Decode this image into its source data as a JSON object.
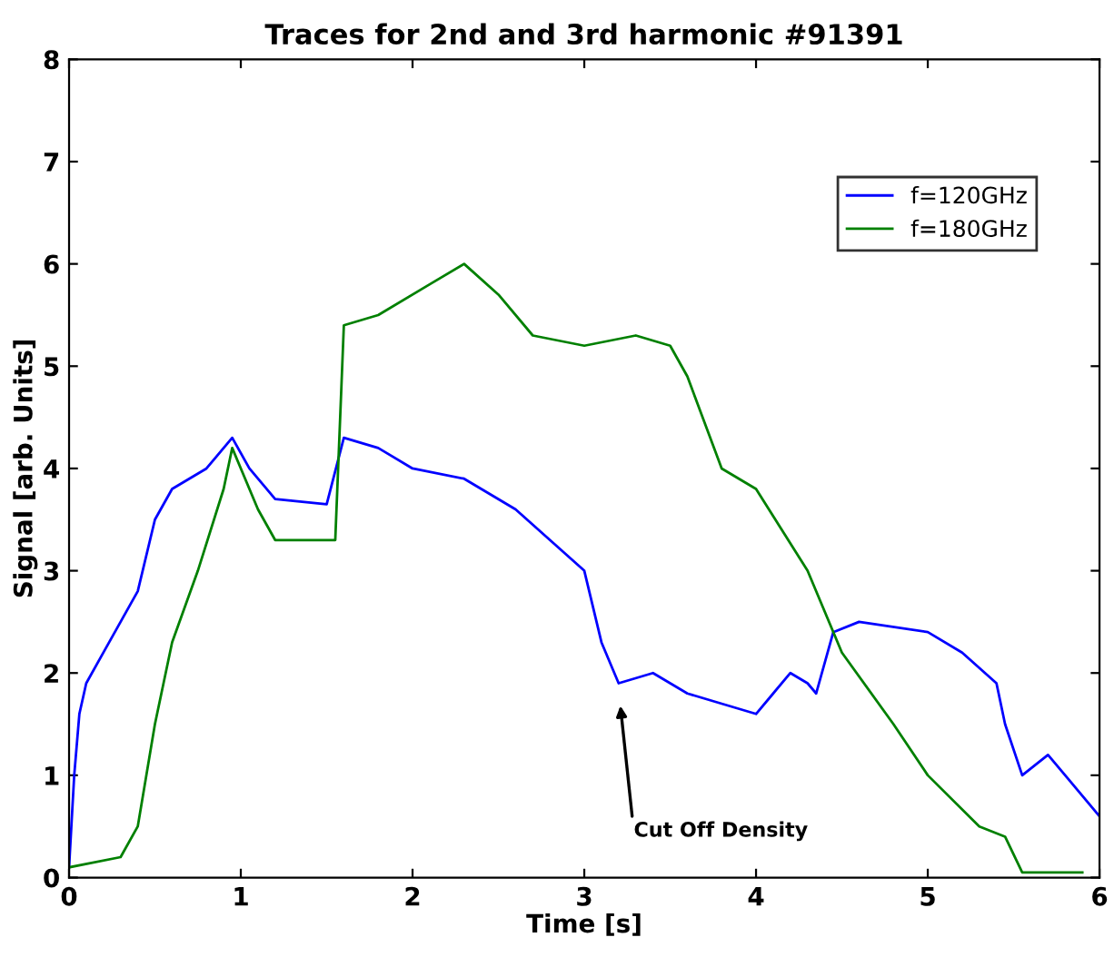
{
  "chart_data": {
    "type": "line",
    "title": "Traces for 2nd and 3rd harmonic #91391",
    "xlabel": "Time [s]",
    "ylabel": "Signal [arb. Units]",
    "xlim": [
      0,
      6
    ],
    "xticks": [
      0,
      1,
      2,
      3,
      4,
      5,
      6
    ],
    "ylim": [
      0,
      8
    ],
    "yticks": [
      0,
      1,
      2,
      3,
      4,
      5,
      6,
      7,
      8
    ],
    "grid": false,
    "legend": "top right",
    "marker": "none",
    "line_style": "solid",
    "series": [
      {
        "name": "f=120GHz",
        "color": "#0000ff",
        "x": [
          0,
          0.03,
          0.06,
          0.1,
          0.2,
          0.3,
          0.4,
          0.5,
          0.6,
          0.8,
          0.95,
          1.05,
          1.2,
          1.5,
          1.6,
          1.8,
          2.0,
          2.3,
          2.6,
          2.8,
          3.0,
          3.1,
          3.2,
          3.4,
          3.6,
          3.8,
          4.0,
          4.1,
          4.2,
          4.3,
          4.35,
          4.45,
          4.6,
          5.0,
          5.2,
          5.4,
          5.45,
          5.55,
          5.7,
          5.8,
          6.0
        ],
        "values": [
          0.1,
          1.0,
          1.6,
          1.9,
          2.2,
          2.5,
          2.8,
          3.5,
          3.8,
          4.0,
          4.3,
          4.0,
          3.7,
          3.65,
          4.3,
          4.2,
          4.0,
          3.9,
          3.6,
          3.3,
          3.0,
          2.3,
          1.9,
          2.0,
          1.8,
          1.7,
          1.6,
          1.8,
          2.0,
          1.9,
          1.8,
          2.4,
          2.5,
          2.4,
          2.2,
          1.9,
          1.5,
          1.0,
          1.2,
          1.0,
          0.6
        ]
      },
      {
        "name": "f=180GHz",
        "color": "#008000",
        "x": [
          0,
          0.3,
          0.4,
          0.5,
          0.6,
          0.75,
          0.9,
          0.95,
          1.1,
          1.2,
          1.55,
          1.6,
          1.8,
          2.1,
          2.3,
          2.5,
          2.7,
          3.0,
          3.3,
          3.5,
          3.6,
          3.8,
          4.0,
          4.3,
          4.5,
          4.8,
          5.0,
          5.3,
          5.45,
          5.55,
          5.9
        ],
        "values": [
          0.1,
          0.2,
          0.5,
          1.5,
          2.3,
          3.0,
          3.8,
          4.2,
          3.6,
          3.3,
          3.3,
          5.4,
          5.5,
          5.8,
          6.0,
          5.7,
          5.3,
          5.2,
          5.3,
          5.2,
          4.9,
          4.0,
          3.8,
          3.0,
          2.2,
          1.5,
          1.0,
          0.5,
          0.4,
          0.05,
          0.05
        ]
      }
    ],
    "annotations": [
      "Cut Off Density"
    ]
  }
}
